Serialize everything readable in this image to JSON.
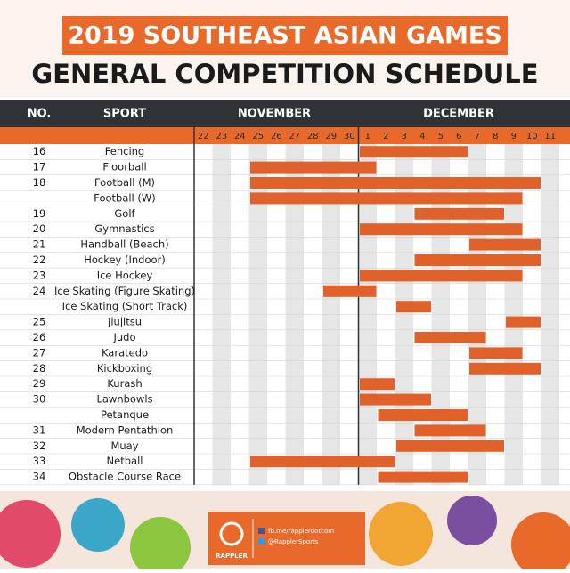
{
  "header": {
    "title": "2019 SOUTHEAST ASIAN GAMES",
    "subtitle": "GENERAL COMPETITION SCHEDULE"
  },
  "table": {
    "columns": {
      "no": "NO.",
      "sport": "SPORT",
      "months": [
        "NOVEMBER",
        "DECEMBER"
      ]
    },
    "days": [
      "22",
      "23",
      "24",
      "25",
      "26",
      "27",
      "28",
      "29",
      "30",
      "1",
      "2",
      "3",
      "4",
      "5",
      "6",
      "7",
      "8",
      "9",
      "10",
      "11"
    ],
    "rows": [
      {
        "no": "16",
        "sport": "Fencing",
        "from": "1",
        "to": "6"
      },
      {
        "no": "17",
        "sport": "Floorball",
        "from": "25",
        "to": "1"
      },
      {
        "no": "18",
        "sport": "Football (M)",
        "from": "25",
        "to": "10"
      },
      {
        "no": null,
        "sport": "Football (W)",
        "from": "25",
        "to": "9"
      },
      {
        "no": "19",
        "sport": "Golf",
        "from": "4",
        "to": "8"
      },
      {
        "no": "20",
        "sport": "Gymnastics",
        "from": "1",
        "to": "9"
      },
      {
        "no": "21",
        "sport": "Handball (Beach)",
        "from": "7",
        "to": "10"
      },
      {
        "no": "22",
        "sport": "Hockey (Indoor)",
        "from": "4",
        "to": "10"
      },
      {
        "no": "23",
        "sport": "Ice Hockey",
        "from": "1",
        "to": "9"
      },
      {
        "no": "24",
        "sport": "Ice Skating (Figure Skating)",
        "from": "29",
        "to": "1"
      },
      {
        "no": null,
        "sport": "Ice Skating (Short Track)",
        "from": "3",
        "to": "4"
      },
      {
        "no": "25",
        "sport": "Jiujitsu",
        "from": "9",
        "to": "10"
      },
      {
        "no": "26",
        "sport": "Judo",
        "from": "4",
        "to": "7"
      },
      {
        "no": "27",
        "sport": "Karatedo",
        "from": "7",
        "to": "9"
      },
      {
        "no": "28",
        "sport": "Kickboxing",
        "from": "7",
        "to": "10"
      },
      {
        "no": "29",
        "sport": "Kurash",
        "from": "1",
        "to": "2"
      },
      {
        "no": "30",
        "sport": "Lawnbowls",
        "from": "1",
        "to": "4"
      },
      {
        "no": null,
        "sport": "Petanque",
        "from": "2",
        "to": "6"
      },
      {
        "no": "31",
        "sport": "Modern Pentathlon",
        "from": "4",
        "to": "7"
      },
      {
        "no": "32",
        "sport": "Muay",
        "from": "3",
        "to": "8"
      },
      {
        "no": "33",
        "sport": "Netball",
        "from": "25",
        "to": "2"
      },
      {
        "no": "34",
        "sport": "Obstacle Course Race",
        "from": "2",
        "to": "6"
      }
    ]
  },
  "footer": {
    "brand": "RAPPLER",
    "facebook": "fb.me/rapplerdotcom",
    "twitter": "@RapplerSports"
  }
}
